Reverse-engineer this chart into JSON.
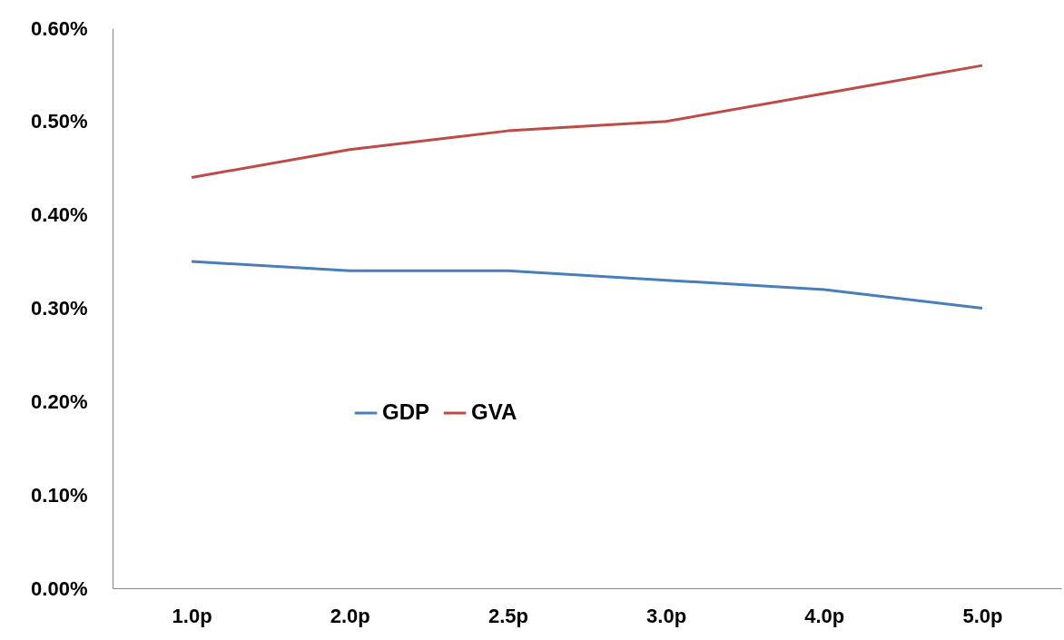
{
  "chart_data": {
    "type": "line",
    "categories": [
      "1.0p",
      "2.0p",
      "2.5p",
      "3.0p",
      "4.0p",
      "5.0p"
    ],
    "series": [
      {
        "name": "GDP",
        "color": "#4a7ebb",
        "values": [
          0.35,
          0.34,
          0.34,
          0.33,
          0.32,
          0.3
        ]
      },
      {
        "name": "GVA",
        "color": "#be4b48",
        "values": [
          0.44,
          0.47,
          0.49,
          0.5,
          0.53,
          0.56
        ]
      }
    ],
    "ylim": [
      0,
      0.6
    ],
    "yticks": [
      {
        "value": 0,
        "label": "0.00%"
      },
      {
        "value": 0.1,
        "label": "0.10%"
      },
      {
        "value": 0.2,
        "label": "0.20%"
      },
      {
        "value": 0.3,
        "label": "0.30%"
      },
      {
        "value": 0.4,
        "label": "0.40%"
      },
      {
        "value": 0.5,
        "label": "0.50%"
      },
      {
        "value": 0.6,
        "label": "0.60%"
      }
    ],
    "grid": false,
    "legend": "bottom",
    "marker": "none",
    "line_style": "solid"
  }
}
